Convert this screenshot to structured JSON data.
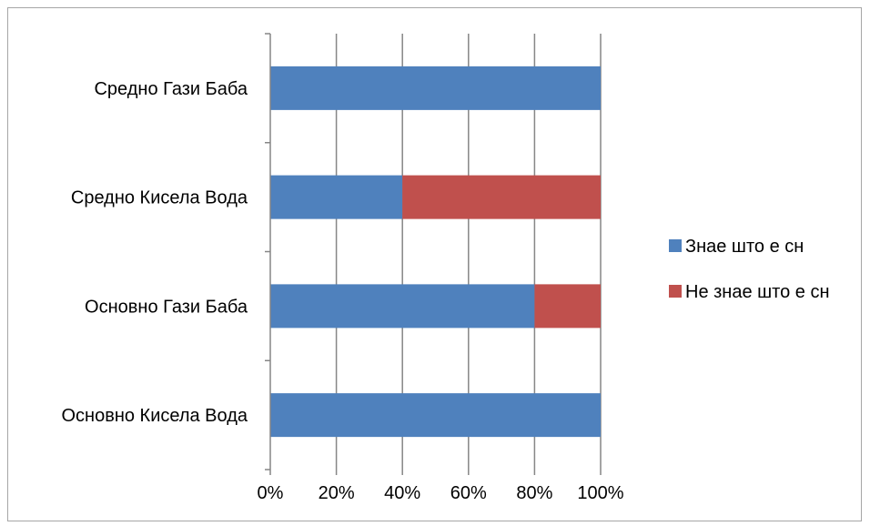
{
  "chart_data": {
    "type": "bar",
    "orientation": "horizontal",
    "stacked": "percent",
    "categories": [
      "Основно Кисела Вода",
      "Основно Гази Баба",
      "Средно Кисела Вода",
      "Средно Гази Баба"
    ],
    "series": [
      {
        "name": "Знае што е сн",
        "color": "#4f81bd",
        "values": [
          100,
          80,
          40,
          100
        ]
      },
      {
        "name": "Не знае што е сн",
        "color": "#c0504d",
        "values": [
          0,
          20,
          60,
          0
        ]
      }
    ],
    "x_ticks": [
      "0%",
      "20%",
      "40%",
      "60%",
      "80%",
      "100%"
    ],
    "xlim": [
      0,
      100
    ],
    "title": "",
    "xlabel": "",
    "ylabel": "",
    "grid": "vertical",
    "legend_position": "right"
  }
}
